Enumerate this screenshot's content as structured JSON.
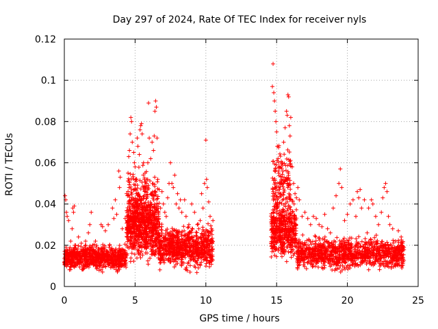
{
  "chart_data": {
    "type": "scatter",
    "title": "Day 297 of 2024, Rate Of TEC Index for receiver nyls",
    "xlabel": "GPS time / hours",
    "ylabel": "ROTI / TECUs",
    "xlim": [
      0,
      25
    ],
    "ylim": [
      0,
      0.12
    ],
    "xticks": [
      0,
      5,
      10,
      15,
      20,
      25
    ],
    "xtick_labels": [
      "0",
      "5",
      "10",
      "15",
      "20",
      "25"
    ],
    "yticks": [
      0,
      0.02,
      0.04,
      0.06,
      0.08,
      0.1,
      0.12
    ],
    "ytick_labels": [
      "0",
      "0.02",
      "0.04",
      "0.06",
      "0.08",
      "0.1",
      "0.12"
    ],
    "grid": true,
    "marker": "+",
    "color": "#ff0000",
    "series": [
      {
        "points": [
          [
            0.05,
            0.044
          ],
          [
            0.1,
            0.042
          ],
          [
            0.15,
            0.036
          ],
          [
            0.2,
            0.034
          ],
          [
            0.3,
            0.032
          ],
          [
            0.35,
            0.012
          ],
          [
            0.45,
            0.022
          ],
          [
            0.5,
            0.018
          ],
          [
            0.55,
            0.028
          ],
          [
            0.6,
            0.038
          ],
          [
            0.65,
            0.036
          ],
          [
            0.7,
            0.039
          ],
          [
            0.8,
            0.02
          ],
          [
            0.9,
            0.017
          ],
          [
            1.0,
            0.024
          ],
          [
            1.1,
            0.015
          ],
          [
            1.2,
            0.021
          ],
          [
            1.3,
            0.016
          ],
          [
            1.4,
            0.019
          ],
          [
            1.5,
            0.022
          ],
          [
            1.6,
            0.018
          ],
          [
            1.7,
            0.026
          ],
          [
            1.8,
            0.03
          ],
          [
            1.9,
            0.036
          ],
          [
            2.0,
            0.02
          ],
          [
            2.1,
            0.017
          ],
          [
            2.2,
            0.022
          ],
          [
            2.4,
            0.015
          ],
          [
            2.6,
            0.03
          ],
          [
            2.7,
            0.029
          ],
          [
            2.9,
            0.027
          ],
          [
            3.1,
            0.03
          ],
          [
            3.2,
            0.02
          ],
          [
            3.4,
            0.038
          ],
          [
            3.5,
            0.033
          ],
          [
            3.6,
            0.042
          ],
          [
            3.7,
            0.035
          ],
          [
            3.85,
            0.056
          ],
          [
            3.9,
            0.048
          ],
          [
            3.95,
            0.053
          ],
          [
            4.1,
            0.028
          ],
          [
            4.3,
            0.033
          ],
          [
            4.4,
            0.045
          ],
          [
            4.5,
            0.055
          ],
          [
            4.55,
            0.063
          ],
          [
            4.6,
            0.066
          ],
          [
            4.65,
            0.074
          ],
          [
            4.7,
            0.082
          ],
          [
            4.75,
            0.08
          ],
          [
            4.8,
            0.07
          ],
          [
            4.9,
            0.065
          ],
          [
            4.95,
            0.06
          ],
          [
            5.0,
            0.058
          ],
          [
            5.05,
            0.052
          ],
          [
            5.1,
            0.045
          ],
          [
            5.15,
            0.072
          ],
          [
            5.2,
            0.068
          ],
          [
            5.3,
            0.064
          ],
          [
            5.35,
            0.076
          ],
          [
            5.4,
            0.078
          ],
          [
            5.45,
            0.079
          ],
          [
            5.5,
            0.074
          ],
          [
            5.6,
            0.06
          ],
          [
            5.7,
            0.055
          ],
          [
            5.8,
            0.05
          ],
          [
            5.9,
            0.06
          ],
          [
            5.95,
            0.089
          ],
          [
            6.0,
            0.072
          ],
          [
            6.1,
            0.062
          ],
          [
            6.2,
            0.07
          ],
          [
            6.3,
            0.066
          ],
          [
            6.35,
            0.073
          ],
          [
            6.4,
            0.085
          ],
          [
            6.45,
            0.09
          ],
          [
            6.5,
            0.087
          ],
          [
            6.55,
            0.072
          ],
          [
            6.6,
            0.052
          ],
          [
            6.7,
            0.047
          ],
          [
            6.8,
            0.038
          ],
          [
            6.9,
            0.046
          ],
          [
            7.0,
            0.04
          ],
          [
            7.1,
            0.036
          ],
          [
            7.2,
            0.034
          ],
          [
            7.3,
            0.043
          ],
          [
            7.4,
            0.05
          ],
          [
            7.5,
            0.06
          ],
          [
            7.6,
            0.05
          ],
          [
            7.7,
            0.048
          ],
          [
            7.8,
            0.054
          ],
          [
            7.9,
            0.04
          ],
          [
            8.0,
            0.045
          ],
          [
            8.1,
            0.038
          ],
          [
            8.2,
            0.042
          ],
          [
            8.3,
            0.036
          ],
          [
            8.5,
            0.042
          ],
          [
            8.6,
            0.034
          ],
          [
            8.8,
            0.03
          ],
          [
            9.0,
            0.04
          ],
          [
            9.2,
            0.036
          ],
          [
            9.4,
            0.03
          ],
          [
            9.5,
            0.028
          ],
          [
            9.6,
            0.032
          ],
          [
            9.7,
            0.045
          ],
          [
            9.8,
            0.038
          ],
          [
            9.9,
            0.05
          ],
          [
            10.0,
            0.071
          ],
          [
            10.05,
            0.052
          ],
          [
            10.1,
            0.048
          ],
          [
            10.2,
            0.041
          ],
          [
            10.3,
            0.034
          ],
          [
            10.4,
            0.028
          ],
          [
            10.5,
            0.032
          ],
          [
            14.7,
            0.097
          ],
          [
            14.75,
            0.108
          ],
          [
            14.8,
            0.094
          ],
          [
            14.85,
            0.09
          ],
          [
            14.9,
            0.085
          ],
          [
            14.95,
            0.08
          ],
          [
            15.0,
            0.075
          ],
          [
            15.05,
            0.068
          ],
          [
            15.1,
            0.062
          ],
          [
            15.15,
            0.055
          ],
          [
            15.2,
            0.05
          ],
          [
            15.3,
            0.045
          ],
          [
            15.4,
            0.06
          ],
          [
            15.5,
            0.07
          ],
          [
            15.6,
            0.077
          ],
          [
            15.7,
            0.085
          ],
          [
            15.75,
            0.083
          ],
          [
            15.8,
            0.093
          ],
          [
            15.85,
            0.092
          ],
          [
            15.9,
            0.078
          ],
          [
            15.95,
            0.073
          ],
          [
            16.0,
            0.082
          ],
          [
            16.1,
            0.058
          ],
          [
            16.2,
            0.05
          ],
          [
            16.3,
            0.045
          ],
          [
            16.4,
            0.043
          ],
          [
            16.5,
            0.048
          ],
          [
            16.6,
            0.042
          ],
          [
            16.8,
            0.034
          ],
          [
            17.0,
            0.036
          ],
          [
            17.2,
            0.033
          ],
          [
            17.4,
            0.03
          ],
          [
            17.6,
            0.034
          ],
          [
            17.8,
            0.033
          ],
          [
            18.0,
            0.03
          ],
          [
            18.2,
            0.029
          ],
          [
            18.4,
            0.035
          ],
          [
            18.6,
            0.028
          ],
          [
            18.8,
            0.026
          ],
          [
            19.0,
            0.038
          ],
          [
            19.2,
            0.044
          ],
          [
            19.4,
            0.05
          ],
          [
            19.5,
            0.057
          ],
          [
            19.6,
            0.048
          ],
          [
            19.8,
            0.032
          ],
          [
            20.0,
            0.035
          ],
          [
            20.2,
            0.04
          ],
          [
            20.4,
            0.042
          ],
          [
            20.6,
            0.034
          ],
          [
            20.7,
            0.046
          ],
          [
            20.8,
            0.043
          ],
          [
            20.9,
            0.047
          ],
          [
            21.0,
            0.038
          ],
          [
            21.2,
            0.042
          ],
          [
            21.4,
            0.026
          ],
          [
            21.5,
            0.038
          ],
          [
            21.7,
            0.042
          ],
          [
            21.8,
            0.04
          ],
          [
            22.0,
            0.034
          ],
          [
            22.2,
            0.03
          ],
          [
            22.4,
            0.036
          ],
          [
            22.5,
            0.043
          ],
          [
            22.6,
            0.048
          ],
          [
            22.7,
            0.05
          ],
          [
            22.8,
            0.046
          ],
          [
            22.9,
            0.034
          ],
          [
            23.0,
            0.03
          ],
          [
            23.2,
            0.028
          ],
          [
            23.4,
            0.022
          ],
          [
            23.6,
            0.027
          ],
          [
            23.8,
            0.024
          ],
          [
            23.9,
            0.021
          ]
        ]
      }
    ],
    "bands": [
      {
        "x0": 0.0,
        "x1": 4.4,
        "ymin": 0.006,
        "ymax": 0.022,
        "n": 750
      },
      {
        "x0": 4.4,
        "x1": 6.7,
        "ymin": 0.008,
        "ymax": 0.048,
        "n": 650
      },
      {
        "x0": 4.5,
        "x1": 6.6,
        "ymin": 0.02,
        "ymax": 0.062,
        "n": 230
      },
      {
        "x0": 6.7,
        "x1": 10.5,
        "ymin": 0.006,
        "ymax": 0.032,
        "n": 750
      },
      {
        "x0": 14.6,
        "x1": 16.4,
        "ymin": 0.009,
        "ymax": 0.045,
        "n": 450
      },
      {
        "x0": 14.7,
        "x1": 16.0,
        "ymin": 0.025,
        "ymax": 0.075,
        "n": 160
      },
      {
        "x0": 16.4,
        "x1": 24.0,
        "ymin": 0.006,
        "ymax": 0.026,
        "n": 1100
      }
    ]
  }
}
